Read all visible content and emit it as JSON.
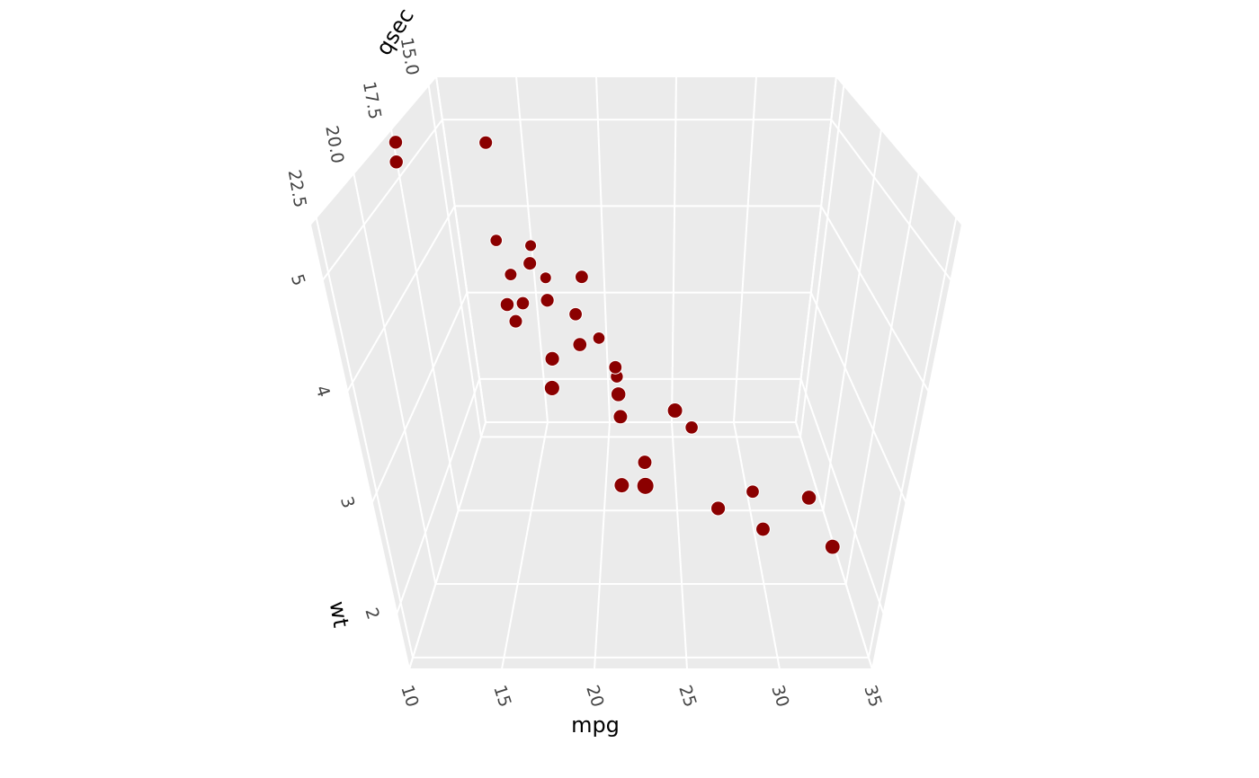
{
  "chart_data": {
    "type": "scatter3d",
    "x_label": "mpg",
    "y_label": "wt",
    "z_label": "qsec",
    "color": "#8b0000",
    "x": [
      21.0,
      21.0,
      22.8,
      21.4,
      18.7,
      18.1,
      14.3,
      24.4,
      22.8,
      19.2,
      17.8,
      16.4,
      17.3,
      15.2,
      10.4,
      10.4,
      14.7,
      32.4,
      30.4,
      33.9,
      21.5,
      15.5,
      15.2,
      13.3,
      19.2,
      27.3,
      26.0,
      30.4,
      15.8,
      19.7,
      15.0,
      21.4
    ],
    "y": [
      2.62,
      2.875,
      2.32,
      3.215,
      3.44,
      3.46,
      3.57,
      3.19,
      3.15,
      3.44,
      3.44,
      4.07,
      3.73,
      3.78,
      5.25,
      5.424,
      5.345,
      2.2,
      1.615,
      1.835,
      2.465,
      3.52,
      3.435,
      3.84,
      3.845,
      1.935,
      2.14,
      1.513,
      3.17,
      2.77,
      3.57,
      2.78
    ],
    "z": [
      16.46,
      17.02,
      18.61,
      19.44,
      17.02,
      20.22,
      15.84,
      20.0,
      22.9,
      18.3,
      18.9,
      17.4,
      17.6,
      18.0,
      17.98,
      17.82,
      17.42,
      19.47,
      18.52,
      19.9,
      20.01,
      16.87,
      17.3,
      15.41,
      17.05,
      18.9,
      16.7,
      16.9,
      14.5,
      15.5,
      14.6,
      18.6
    ],
    "xlim": [
      10,
      35
    ],
    "ylim": [
      1.5,
      5.5
    ],
    "zlim": [
      14.5,
      22.9
    ],
    "xticks": [
      10,
      15,
      20,
      25,
      30,
      35
    ],
    "yticks": [
      2,
      3,
      4,
      5
    ],
    "zticks": [
      {
        "value": 15,
        "label": "15.0"
      },
      {
        "value": 17.5,
        "label": "17.5"
      },
      {
        "value": 20,
        "label": "20.0"
      },
      {
        "value": 22.5,
        "label": "22.5"
      }
    ],
    "grid": true
  }
}
